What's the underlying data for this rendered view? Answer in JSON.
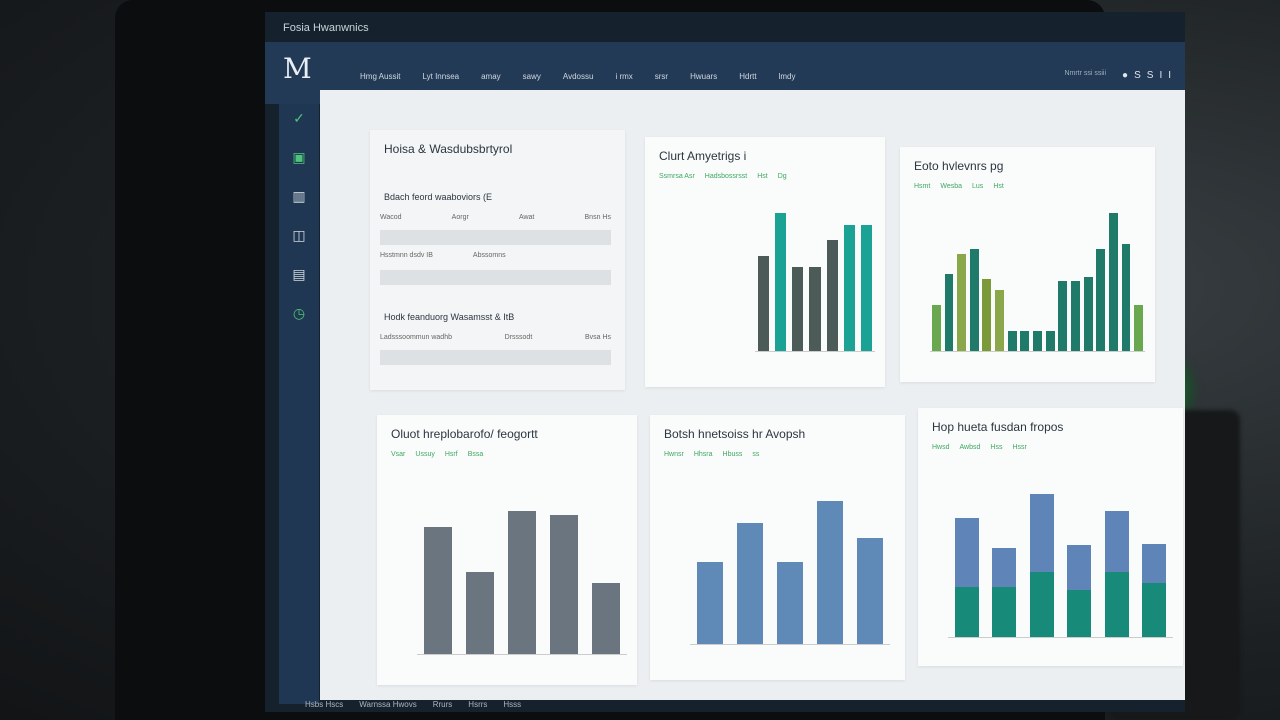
{
  "app": {
    "title": "Fosia Hwanwnics"
  },
  "topbar": {
    "nav": [
      "Hmg Aussit",
      "Lyt Innsea",
      "amay",
      "sawy",
      "Avdossu",
      "i rmx",
      "srsr",
      "Hwuars",
      "Hdrtt",
      "lmdy"
    ],
    "right_label": "Nmrtr ssi ssiii",
    "icons": [
      "user-icon",
      "S",
      "S",
      "I",
      "I"
    ]
  },
  "sidebar": {
    "items": [
      "check-icon",
      "calendar-icon",
      "chart-icon",
      "box-icon",
      "book-icon",
      "clock-icon"
    ]
  },
  "cards": {
    "c1": {
      "title": "Hoisa & Wasdubsbrtyrol",
      "sub1": "Bdach feord waaboviors (E",
      "row1": [
        "Wacod",
        "Aorgr",
        "Awat",
        "Bnsn Hs"
      ],
      "row2": [
        "Hsstmnn dsdv IB",
        "Abssomns"
      ],
      "sub2": "Hodk feanduorg Wasamsst & ItB",
      "row3": [
        "Ladsssoommun wadhb",
        "Drsssodt",
        "Bvsa Hs"
      ]
    },
    "c2": {
      "title": "Clurt Amyetrigs i",
      "legend": [
        "Ssmrsa Asr",
        "Hadsbossrsst",
        "Hst",
        "Dg"
      ]
    },
    "c3": {
      "title": "Eoto hvlevnrs pg",
      "legend": [
        "Hsmt",
        "Wesba",
        "Lus",
        "Hst"
      ]
    },
    "c4": {
      "title": "Oluot hreplobarofo/ feogortt",
      "legend": [
        "Vsar",
        "Ussuy",
        "Hsrf",
        "Bssa"
      ]
    },
    "c5": {
      "title": "Botsh hnetsoiss hr Avopsh",
      "legend": [
        "Hwnsr",
        "Hhsra",
        "Hbuss",
        "ss"
      ]
    },
    "c6": {
      "title": "Hop hueta fusdan fropos",
      "legend": [
        "Hwsd",
        "Awbsd",
        "Hss",
        "Hssr"
      ]
    }
  },
  "chart_data": [
    {
      "type": "bar",
      "values": [
        70,
        102,
        62,
        62,
        82,
        93,
        93
      ],
      "colors": [
        "#4d5b58",
        "#1aa394",
        "#4d5b58",
        "#4d5b58",
        "#4d5b58",
        "#1aa394",
        "#1aa394"
      ]
    },
    {
      "type": "bar",
      "values": [
        45,
        75,
        95,
        100,
        70,
        60,
        20,
        20,
        20,
        20,
        68,
        68,
        72,
        100,
        135,
        105,
        45
      ],
      "colors": [
        "#6aa84f",
        "#1f7a6a",
        "#8aa84a",
        "#1f7a6a",
        "#7a9a3a",
        "#8aa84a",
        "#1f7a6a",
        "#1f7a6a",
        "#1f7a6a",
        "#1f7a6a",
        "#1f7a6a",
        "#1f7a6a",
        "#1f7a6a",
        "#1f7a6a",
        "#1f7a6a",
        "#1f7a6a",
        "#6aa84f"
      ]
    },
    {
      "type": "bar",
      "values": [
        73,
        47,
        82,
        80,
        41
      ],
      "color": "#6b7580"
    },
    {
      "type": "bar",
      "values": [
        72,
        106,
        72,
        125,
        93
      ],
      "color": "#5f8ab8"
    },
    {
      "type": "stacked_bar",
      "series": [
        {
          "values": [
            45,
            45,
            58,
            42,
            58,
            48
          ]
        },
        {
          "values": [
            62,
            35,
            70,
            40,
            55,
            35
          ]
        }
      ],
      "colors": [
        "#178a7a",
        "#5f84b8"
      ]
    }
  ],
  "footer": {
    "text": [
      "Hsbs Hscs",
      "Warnssa Hwovs",
      "Rrurs",
      "Hsrrs",
      "Hsss"
    ]
  }
}
